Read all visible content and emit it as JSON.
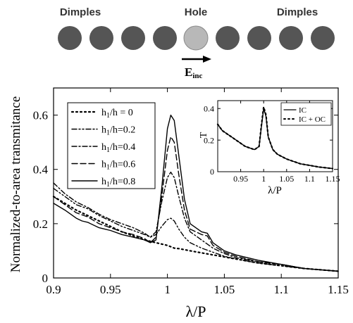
{
  "schematic": {
    "labels": {
      "left": "Dimples",
      "center": "Hole",
      "right": "Dimples"
    },
    "field_label": "E",
    "field_subscript": "inc",
    "colors": {
      "dimple": "#555555",
      "hole": "#b8b8b8"
    }
  },
  "chart_data": [
    {
      "type": "line",
      "title": "",
      "xlabel": "λ/P",
      "ylabel": "Normalized-to-area transmitance",
      "xlim": [
        0.9,
        1.15
      ],
      "ylim": [
        0,
        0.7
      ],
      "xticks": [
        "0.9",
        "0.95",
        "1",
        "1.05",
        "1.1",
        "1.15"
      ],
      "yticks": [
        "0",
        "0.2",
        "0.4",
        "0.6"
      ],
      "grid": false,
      "legend_position": "top-left",
      "series": [
        {
          "name": "h₁/h = 0",
          "legend_main": "h",
          "legend_sub": "1",
          "legend_rest": "/h = 0",
          "dash": "dot",
          "x": [
            0.9,
            0.92,
            0.94,
            0.96,
            0.98,
            0.99,
            1.0,
            1.003,
            1.006,
            1.01,
            1.02,
            1.04,
            1.06,
            1.08,
            1.1,
            1.12,
            1.15
          ],
          "y": [
            0.3,
            0.25,
            0.21,
            0.17,
            0.14,
            0.13,
            0.12,
            0.115,
            0.11,
            0.108,
            0.1,
            0.085,
            0.07,
            0.055,
            0.045,
            0.035,
            0.025
          ]
        },
        {
          "name": "h₁/h=0.2",
          "legend_main": "h",
          "legend_sub": "1",
          "legend_rest": "/h=0.2",
          "dash": "dashdotdot",
          "x": [
            0.9,
            0.91,
            0.92,
            0.93,
            0.94,
            0.95,
            0.96,
            0.97,
            0.98,
            0.985,
            0.99,
            0.995,
            1.0,
            1.003,
            1.006,
            1.01,
            1.015,
            1.02,
            1.03,
            1.04,
            1.05,
            1.06,
            1.08,
            1.1,
            1.12,
            1.15
          ],
          "y": [
            0.33,
            0.3,
            0.27,
            0.255,
            0.23,
            0.21,
            0.19,
            0.175,
            0.16,
            0.15,
            0.16,
            0.19,
            0.215,
            0.22,
            0.21,
            0.18,
            0.15,
            0.13,
            0.11,
            0.095,
            0.08,
            0.07,
            0.055,
            0.045,
            0.035,
            0.025
          ]
        },
        {
          "name": "h₁/h=0.4",
          "legend_main": "h",
          "legend_sub": "1",
          "legend_rest": "/h=0.4",
          "dash": "dashdot",
          "x": [
            0.9,
            0.91,
            0.92,
            0.93,
            0.94,
            0.95,
            0.96,
            0.97,
            0.98,
            0.985,
            0.99,
            0.995,
            1.0,
            1.003,
            1.006,
            1.01,
            1.015,
            1.02,
            1.03,
            1.04,
            1.05,
            1.06,
            1.08,
            1.1,
            1.12,
            1.15
          ],
          "y": [
            0.35,
            0.31,
            0.28,
            0.26,
            0.235,
            0.215,
            0.2,
            0.185,
            0.165,
            0.15,
            0.17,
            0.28,
            0.37,
            0.39,
            0.37,
            0.3,
            0.22,
            0.17,
            0.14,
            0.11,
            0.09,
            0.075,
            0.06,
            0.05,
            0.035,
            0.025
          ]
        },
        {
          "name": "h₁/h=0.6",
          "legend_main": "h",
          "legend_sub": "1",
          "legend_rest": "/h=0.6",
          "dash": "dash",
          "x": [
            0.9,
            0.91,
            0.92,
            0.93,
            0.94,
            0.95,
            0.96,
            0.97,
            0.98,
            0.985,
            0.99,
            0.995,
            1.0,
            1.003,
            1.006,
            1.01,
            1.015,
            1.02,
            1.03,
            1.035,
            1.04,
            1.05,
            1.06,
            1.08,
            1.1,
            1.12,
            1.15
          ],
          "y": [
            0.3,
            0.27,
            0.24,
            0.225,
            0.2,
            0.185,
            0.17,
            0.16,
            0.145,
            0.13,
            0.15,
            0.3,
            0.47,
            0.52,
            0.5,
            0.38,
            0.25,
            0.18,
            0.16,
            0.155,
            0.12,
            0.095,
            0.08,
            0.06,
            0.05,
            0.035,
            0.025
          ]
        },
        {
          "name": "h₁/h=0.8",
          "legend_main": "h",
          "legend_sub": "1",
          "legend_rest": "/h=0.8",
          "dash": "solid",
          "x": [
            0.9,
            0.91,
            0.92,
            0.925,
            0.93,
            0.94,
            0.945,
            0.95,
            0.96,
            0.965,
            0.97,
            0.98,
            0.985,
            0.99,
            0.995,
            1.0,
            1.003,
            1.006,
            1.01,
            1.015,
            1.02,
            1.03,
            1.035,
            1.04,
            1.05,
            1.06,
            1.08,
            1.1,
            1.12,
            1.15
          ],
          "y": [
            0.275,
            0.25,
            0.22,
            0.21,
            0.205,
            0.185,
            0.18,
            0.175,
            0.16,
            0.155,
            0.15,
            0.14,
            0.13,
            0.14,
            0.33,
            0.55,
            0.6,
            0.58,
            0.45,
            0.29,
            0.2,
            0.17,
            0.165,
            0.13,
            0.1,
            0.085,
            0.065,
            0.05,
            0.035,
            0.025
          ]
        }
      ]
    },
    {
      "type": "line",
      "title": "",
      "xlabel": "λ/P",
      "ylabel": "T",
      "xlim": [
        0.9,
        1.15
      ],
      "ylim": [
        0,
        0.45
      ],
      "xticks": [
        "0.95",
        "1",
        "1.05",
        "1.1",
        "1.15"
      ],
      "yticks": [
        "0",
        "0.2",
        "0.4"
      ],
      "grid": false,
      "legend_position": "top-right",
      "series": [
        {
          "name": "IC",
          "dash": "solid",
          "x": [
            0.9,
            0.91,
            0.92,
            0.93,
            0.94,
            0.95,
            0.96,
            0.97,
            0.98,
            0.99,
            0.995,
            1.0,
            1.005,
            1.01,
            1.02,
            1.03,
            1.05,
            1.08,
            1.1,
            1.12,
            1.15
          ],
          "y": [
            0.3,
            0.26,
            0.24,
            0.22,
            0.2,
            0.18,
            0.16,
            0.15,
            0.14,
            0.16,
            0.28,
            0.4,
            0.35,
            0.22,
            0.14,
            0.11,
            0.08,
            0.05,
            0.04,
            0.03,
            0.02
          ]
        },
        {
          "name": "IC + OC",
          "dash": "dot",
          "x": [
            0.9,
            0.91,
            0.92,
            0.93,
            0.94,
            0.95,
            0.96,
            0.97,
            0.98,
            0.99,
            0.995,
            1.0,
            1.005,
            1.01,
            1.02,
            1.03,
            1.05,
            1.08,
            1.1,
            1.12,
            1.15
          ],
          "y": [
            0.3,
            0.26,
            0.24,
            0.22,
            0.2,
            0.18,
            0.16,
            0.15,
            0.14,
            0.16,
            0.29,
            0.41,
            0.36,
            0.22,
            0.14,
            0.11,
            0.08,
            0.05,
            0.04,
            0.03,
            0.02
          ]
        }
      ]
    }
  ]
}
